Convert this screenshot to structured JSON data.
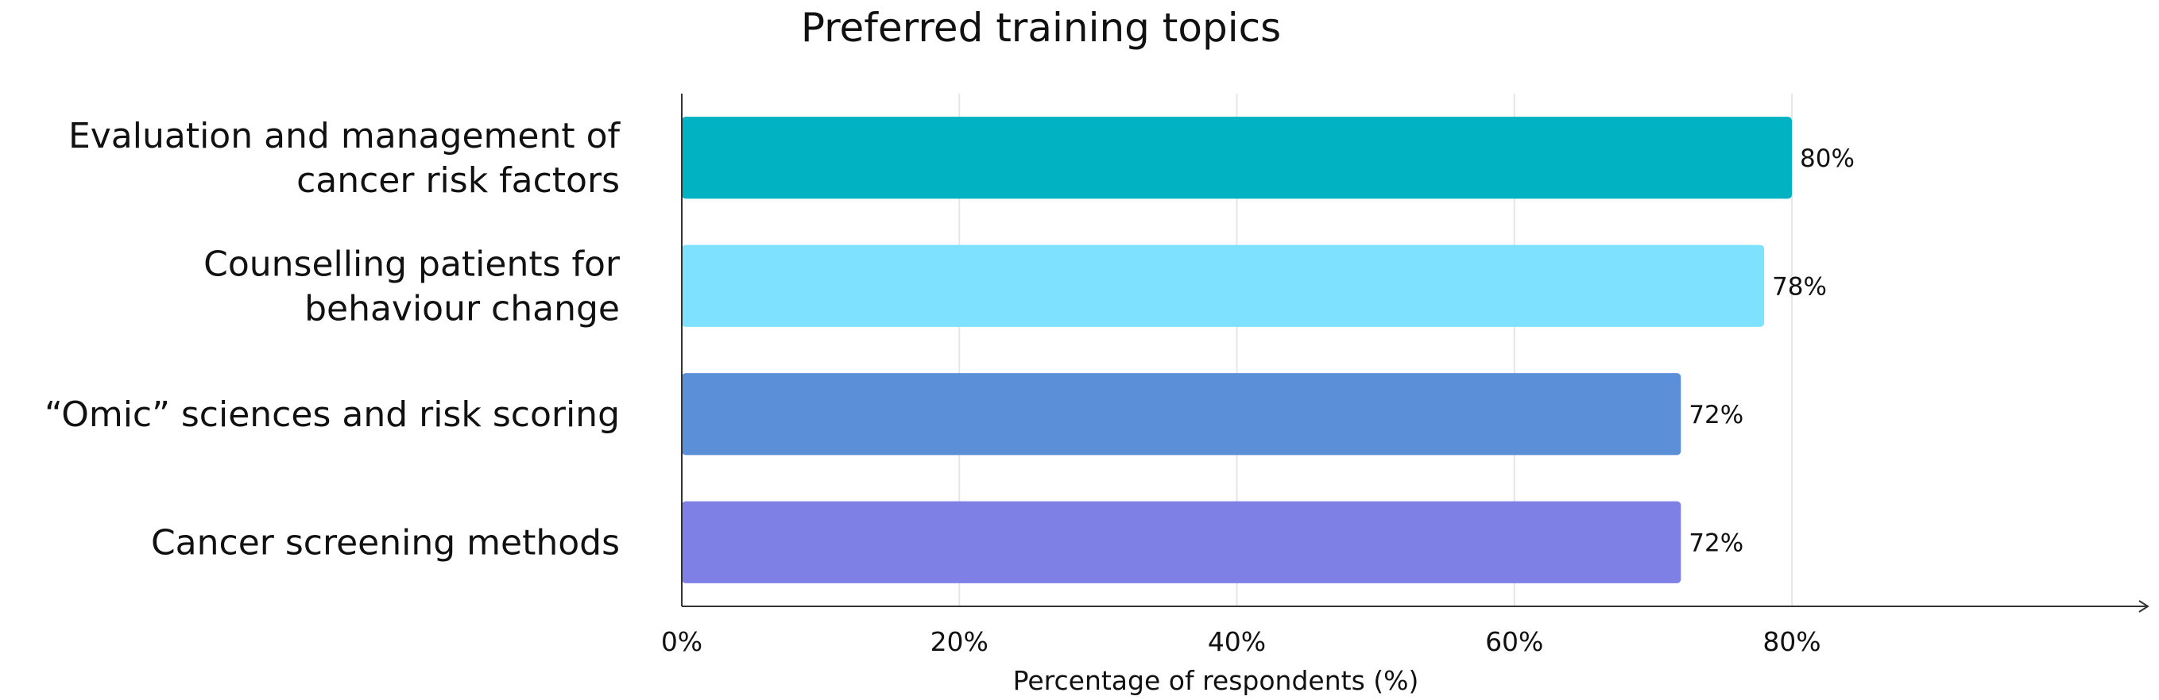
{
  "chart_data": {
    "type": "bar",
    "orientation": "horizontal",
    "title": "Preferred training topics",
    "xlabel": "Percentage of respondents (%)",
    "ylabel": "",
    "xlim": [
      0,
      80
    ],
    "xticks": [
      0,
      20,
      40,
      60,
      80
    ],
    "tick_labels": [
      "0%",
      "20%",
      "40%",
      "60%",
      "80%"
    ],
    "grid": "vertical",
    "categories": [
      [
        "Evaluation and management of",
        "cancer risk factors"
      ],
      [
        "Counselling patients for",
        "behaviour change"
      ],
      [
        "“Omic” sciences and risk scoring"
      ],
      [
        "Cancer screening methods"
      ]
    ],
    "values": [
      80,
      78,
      72,
      72
    ],
    "value_labels": [
      "80%",
      "78%",
      "72%",
      "72%"
    ],
    "colors": [
      "#00b2c2",
      "#7ee1ff",
      "#5b8fd8",
      "#7f80e6"
    ]
  }
}
